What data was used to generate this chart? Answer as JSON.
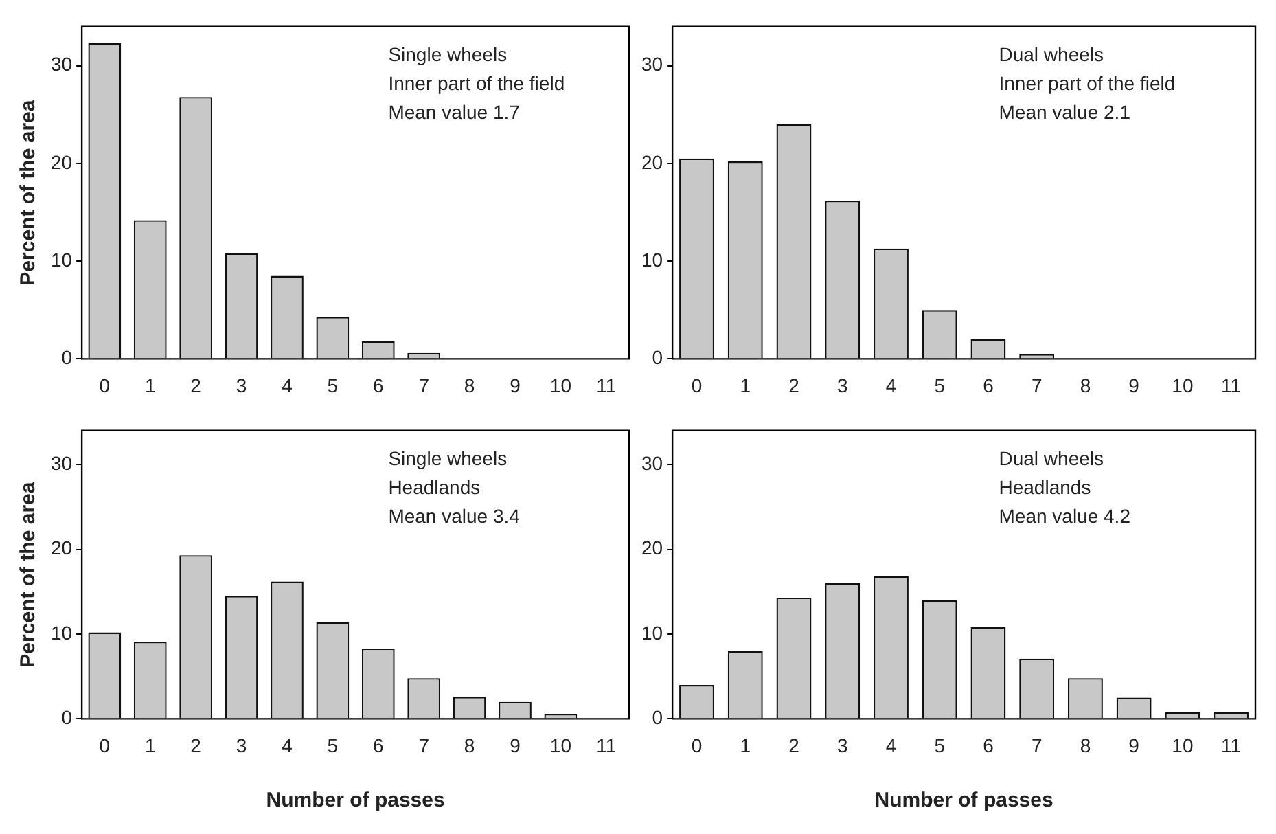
{
  "chart_data": [
    {
      "type": "bar",
      "categories": [
        "0",
        "1",
        "2",
        "3",
        "4",
        "5",
        "6",
        "7",
        "8",
        "9",
        "10",
        "11"
      ],
      "values": [
        32.3,
        14.2,
        26.8,
        10.8,
        8.5,
        4.3,
        1.8,
        0.6,
        0,
        0,
        0,
        0
      ],
      "color": "#c8c8c8",
      "ylim": [
        0,
        34
      ],
      "yticks": [
        0,
        10,
        20,
        30
      ],
      "ylabel": "Percent of the area",
      "annotations": [
        "Single wheels",
        "Inner part of the field",
        "Mean value 1.7"
      ]
    },
    {
      "type": "bar",
      "categories": [
        "0",
        "1",
        "2",
        "3",
        "4",
        "5",
        "6",
        "7",
        "8",
        "9",
        "10",
        "11"
      ],
      "values": [
        20.5,
        20.2,
        24,
        16.2,
        11.3,
        5,
        2,
        0.5,
        0,
        0,
        0,
        0
      ],
      "color": "#c8c8c8",
      "ylim": [
        0,
        34
      ],
      "yticks": [
        0,
        10,
        20,
        30
      ],
      "annotations": [
        "Dual wheels",
        "Inner part of the field",
        "Mean value 2.1"
      ]
    },
    {
      "type": "bar",
      "categories": [
        "0",
        "1",
        "2",
        "3",
        "4",
        "5",
        "6",
        "7",
        "8",
        "9",
        "10",
        "11"
      ],
      "values": [
        10.2,
        9.1,
        19.3,
        14.5,
        16.2,
        11.4,
        8.3,
        4.8,
        2.6,
        2,
        0.6,
        0
      ],
      "color": "#c8c8c8",
      "ylim": [
        0,
        34
      ],
      "yticks": [
        0,
        10,
        20,
        30
      ],
      "ylabel": "Percent of the area",
      "xlabel": "Number of passes",
      "annotations": [
        "Single wheels",
        "Headlands",
        "Mean value 3.4"
      ]
    },
    {
      "type": "bar",
      "categories": [
        "0",
        "1",
        "2",
        "3",
        "4",
        "5",
        "6",
        "7",
        "8",
        "9",
        "10",
        "11"
      ],
      "values": [
        4,
        8,
        14.3,
        16,
        16.8,
        14,
        10.8,
        7.1,
        4.8,
        2.5,
        0.8,
        0.8
      ],
      "color": "#c8c8c8",
      "ylim": [
        0,
        34
      ],
      "yticks": [
        0,
        10,
        20,
        30
      ],
      "xlabel": "Number of passes",
      "annotations": [
        "Dual wheels",
        "Headlands",
        "Mean value 4.2"
      ]
    }
  ]
}
